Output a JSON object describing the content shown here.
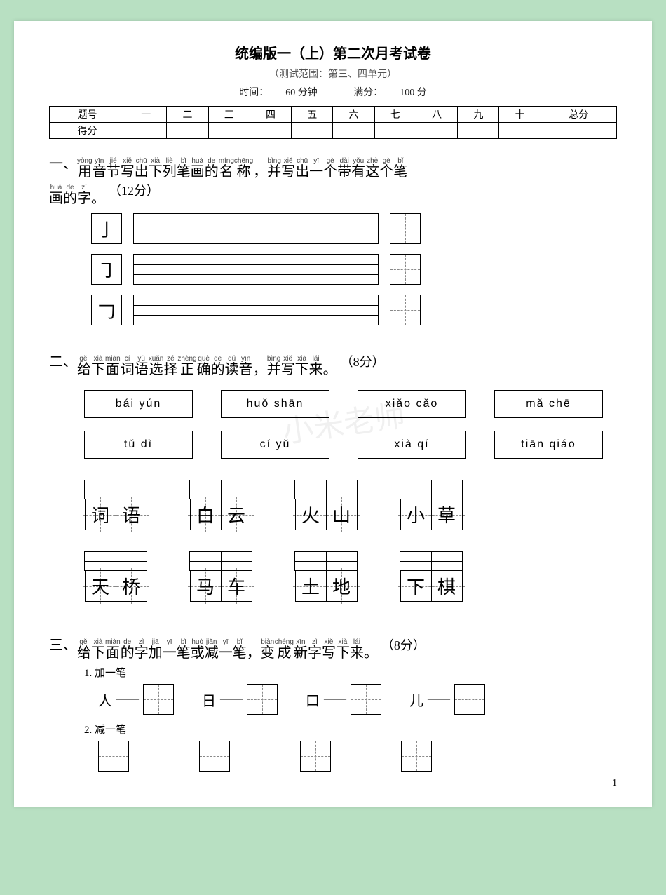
{
  "header": {
    "title": "统编版一（上）第二次月考试卷",
    "subtitle": "（测试范围：第三、四单元）",
    "time_label": "时间：",
    "time_value": "60 分钟",
    "score_label": "满分：",
    "score_value": "100 分"
  },
  "score_table": {
    "row1": [
      "题号",
      "一",
      "二",
      "三",
      "四",
      "五",
      "六",
      "七",
      "八",
      "九",
      "十",
      "总分"
    ],
    "row2_label": "得分"
  },
  "q1": {
    "number": "一、",
    "chars": [
      {
        "p": "yòng",
        "b": "用"
      },
      {
        "p": "yīn",
        "b": "音"
      },
      {
        "p": "jié",
        "b": "节"
      },
      {
        "p": "xiě",
        "b": "写"
      },
      {
        "p": "chū",
        "b": "出"
      },
      {
        "p": "xià",
        "b": "下"
      },
      {
        "p": "liè",
        "b": "列"
      },
      {
        "p": "bǐ",
        "b": "笔"
      },
      {
        "p": "huà",
        "b": "画"
      },
      {
        "p": "de",
        "b": "的"
      },
      {
        "p": "míng",
        "b": "名"
      },
      {
        "p": "chēng",
        "b": "称"
      },
      {
        "p": "",
        "b": "，"
      },
      {
        "p": "bìng",
        "b": "并"
      },
      {
        "p": "xiě",
        "b": "写"
      },
      {
        "p": "chū",
        "b": "出"
      },
      {
        "p": "yī",
        "b": "一"
      },
      {
        "p": "gè",
        "b": "个"
      },
      {
        "p": "dài",
        "b": "带"
      },
      {
        "p": "yǒu",
        "b": "有"
      },
      {
        "p": "zhè",
        "b": "这"
      },
      {
        "p": "gè",
        "b": "个"
      },
      {
        "p": "bǐ",
        "b": "笔"
      }
    ],
    "chars2": [
      {
        "p": "huà",
        "b": "画"
      },
      {
        "p": "de",
        "b": "的"
      },
      {
        "p": "zì",
        "b": "字"
      },
      {
        "p": "",
        "b": "。"
      }
    ],
    "points": "（12分）",
    "strokes": [
      "亅",
      "㇆",
      "𠃌"
    ]
  },
  "q2": {
    "number": "二、",
    "chars": [
      {
        "p": "gěi",
        "b": "给"
      },
      {
        "p": "xià",
        "b": "下"
      },
      {
        "p": "miàn",
        "b": "面"
      },
      {
        "p": "cí",
        "b": "词"
      },
      {
        "p": "yǔ",
        "b": "语"
      },
      {
        "p": "xuǎn",
        "b": "选"
      },
      {
        "p": "zé",
        "b": "择"
      },
      {
        "p": "zhèng",
        "b": "正"
      },
      {
        "p": "què",
        "b": "确"
      },
      {
        "p": "de",
        "b": "的"
      },
      {
        "p": "dú",
        "b": "读"
      },
      {
        "p": "yīn",
        "b": "音"
      },
      {
        "p": "",
        "b": "，"
      },
      {
        "p": "bìng",
        "b": "并"
      },
      {
        "p": "xiě",
        "b": "写"
      },
      {
        "p": "xià",
        "b": "下"
      },
      {
        "p": "lái",
        "b": "来"
      },
      {
        "p": "",
        "b": "。"
      }
    ],
    "points": "（8分）",
    "opts_row1": [
      "bái  yún",
      "huǒ  shān",
      "xiǎo  cǎo",
      "mǎ  chē"
    ],
    "opts_row2": [
      "tǔ  dì",
      "cí  yǔ",
      "xià  qí",
      "tiān  qiáo"
    ],
    "words_row1": [
      [
        "词",
        "语"
      ],
      [
        "白",
        "云"
      ],
      [
        "火",
        "山"
      ],
      [
        "小",
        "草"
      ]
    ],
    "words_row2": [
      [
        "天",
        "桥"
      ],
      [
        "马",
        "车"
      ],
      [
        "土",
        "地"
      ],
      [
        "下",
        "棋"
      ]
    ]
  },
  "q3": {
    "number": "三、",
    "chars": [
      {
        "p": "gěi",
        "b": "给"
      },
      {
        "p": "xià",
        "b": "下"
      },
      {
        "p": "miàn",
        "b": "面"
      },
      {
        "p": "de",
        "b": "的"
      },
      {
        "p": "zì",
        "b": "字"
      },
      {
        "p": "jiā",
        "b": "加"
      },
      {
        "p": "yī",
        "b": "一"
      },
      {
        "p": "bǐ",
        "b": "笔"
      },
      {
        "p": "huò",
        "b": "或"
      },
      {
        "p": "jiǎn",
        "b": "减"
      },
      {
        "p": "yī",
        "b": "一"
      },
      {
        "p": "bǐ",
        "b": "笔"
      },
      {
        "p": "",
        "b": "，"
      },
      {
        "p": "biàn",
        "b": "变"
      },
      {
        "p": "chéng",
        "b": "成"
      },
      {
        "p": "xīn",
        "b": "新"
      },
      {
        "p": "zì",
        "b": "字"
      },
      {
        "p": "xiě",
        "b": "写"
      },
      {
        "p": "xià",
        "b": "下"
      },
      {
        "p": "lái",
        "b": "来"
      },
      {
        "p": "",
        "b": "。"
      }
    ],
    "points": "（8分）",
    "sub1": "1. 加一笔",
    "sub2": "2. 减一笔",
    "items1": [
      "人",
      "日",
      "口",
      "儿"
    ]
  },
  "page_num": "1",
  "watermark": "小米老师"
}
